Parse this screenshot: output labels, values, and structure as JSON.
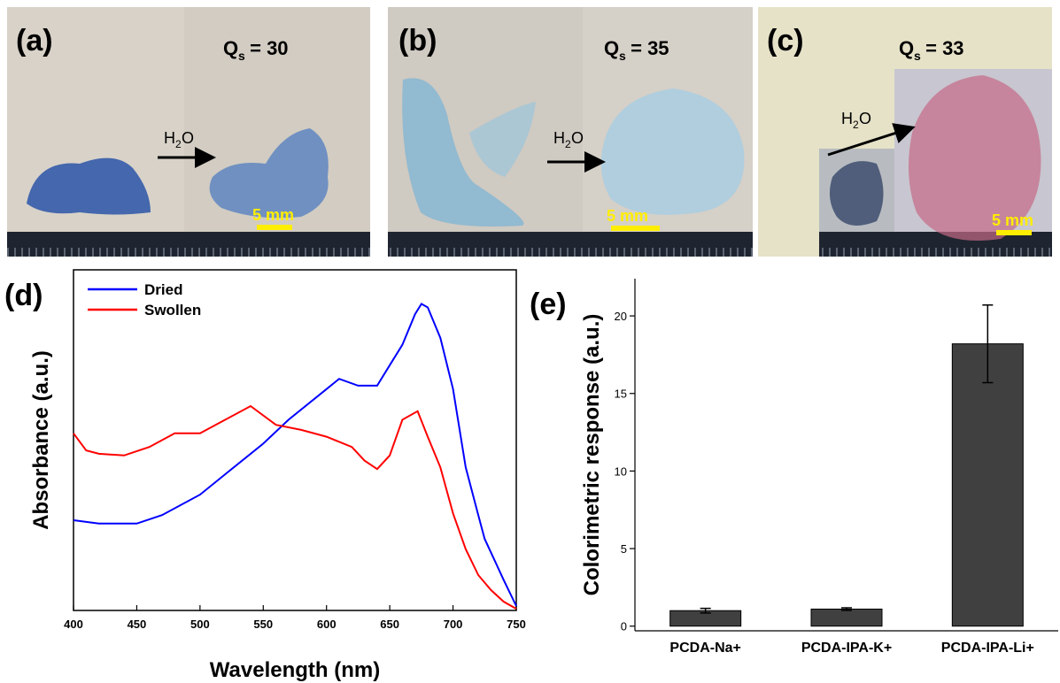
{
  "photos": [
    {
      "label": "(a)",
      "q": "Q",
      "q_sub": "s",
      "q_value": " = 30",
      "h": "H",
      "h_sub": "2",
      "h_end": "O",
      "scale": "5 mm"
    },
    {
      "label": "(b)",
      "q": "Q",
      "q_sub": "s",
      "q_value": " = 35",
      "h": "H",
      "h_sub": "2",
      "h_end": "O",
      "scale": "5 mm"
    },
    {
      "label": "(c)",
      "q": "Q",
      "q_sub": "s",
      "q_value": " = 33",
      "h": "H",
      "h_sub": "2",
      "h_end": "O",
      "scale": "5 mm"
    }
  ],
  "chart_data": [
    {
      "type": "line",
      "panel_label": "(d)",
      "xlabel": "Wavelength (nm)",
      "ylabel": "Absorbance (a.u.)",
      "xlim": [
        400,
        750
      ],
      "xticks": [
        400,
        450,
        500,
        550,
        600,
        650,
        700,
        750
      ],
      "ylim": [
        0,
        1
      ],
      "legend": "upper left",
      "series": [
        {
          "name": "Dried",
          "color": "#0000ff",
          "x": [
            400,
            420,
            450,
            470,
            500,
            520,
            550,
            570,
            600,
            610,
            625,
            640,
            650,
            660,
            670,
            675,
            680,
            690,
            700,
            710,
            720,
            725,
            735,
            740,
            750
          ],
          "values": [
            0.265,
            0.255,
            0.255,
            0.28,
            0.34,
            0.4,
            0.49,
            0.56,
            0.65,
            0.68,
            0.66,
            0.66,
            0.72,
            0.78,
            0.87,
            0.9,
            0.89,
            0.8,
            0.65,
            0.42,
            0.28,
            0.21,
            0.13,
            0.09,
            0.013
          ]
        },
        {
          "name": "Swollen",
          "color": "#ff0000",
          "x": [
            400,
            410,
            420,
            440,
            460,
            480,
            500,
            520,
            540,
            560,
            580,
            600,
            620,
            630,
            640,
            650,
            660,
            672,
            680,
            690,
            700,
            710,
            720,
            730,
            740,
            750
          ],
          "values": [
            0.52,
            0.47,
            0.46,
            0.455,
            0.48,
            0.52,
            0.52,
            0.56,
            0.6,
            0.545,
            0.53,
            0.51,
            0.48,
            0.44,
            0.415,
            0.455,
            0.56,
            0.585,
            0.51,
            0.42,
            0.285,
            0.18,
            0.104,
            0.06,
            0.026,
            0.005
          ]
        }
      ]
    },
    {
      "type": "bar",
      "panel_label": "(e)",
      "ylabel": "Colorimetric response (a.u.)",
      "categories": [
        "PCDA-Na+",
        "PCDA-IPA-K+",
        "PCDA-IPA-Li+"
      ],
      "values": [
        1.0,
        1.1,
        18.2
      ],
      "errors": [
        0.15,
        0.08,
        2.5
      ],
      "color": "#404040",
      "ylim": [
        -0.3,
        22.4
      ],
      "yticks": [
        0,
        5,
        10,
        15,
        20
      ]
    }
  ]
}
